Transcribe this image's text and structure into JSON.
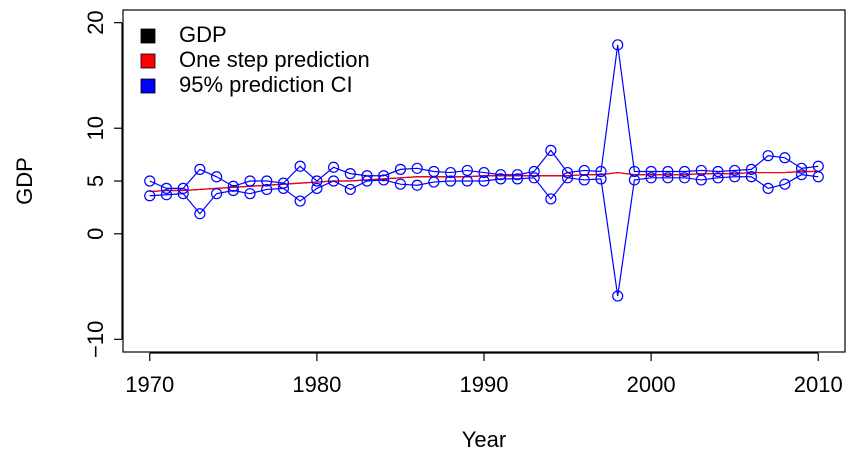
{
  "chart_data": {
    "type": "line",
    "x": [
      1970,
      1971,
      1972,
      1973,
      1974,
      1975,
      1976,
      1977,
      1978,
      1979,
      1980,
      1981,
      1982,
      1983,
      1984,
      1985,
      1986,
      1987,
      1988,
      1989,
      1990,
      1991,
      1992,
      1993,
      1994,
      1995,
      1996,
      1997,
      1998,
      1999,
      2000,
      2001,
      2002,
      2003,
      2004,
      2005,
      2006,
      2007,
      2008,
      2009,
      2010
    ],
    "xlabel": "Year",
    "ylabel": "GDP",
    "xlim": [
      1968.4,
      2011.6
    ],
    "xticks": [
      1970,
      1980,
      1990,
      2000,
      2010
    ],
    "ylim": [
      -11.2,
      21.2
    ],
    "yticks": [
      {
        "value": -10,
        "label": "−10"
      },
      0,
      5,
      10,
      20
    ],
    "legend": "top-left",
    "series": [
      {
        "name": "GDP",
        "color": "#000000",
        "values": [
          4.0,
          4.1,
          4.1,
          4.2,
          4.3,
          4.4,
          4.5,
          4.6,
          4.7,
          4.8,
          4.9,
          5.0,
          5.0,
          5.1,
          5.2,
          5.3,
          5.4,
          5.4,
          5.4,
          5.4,
          5.5,
          5.5,
          5.5,
          5.5,
          5.5,
          5.5,
          5.6,
          5.6,
          5.8,
          5.6,
          5.6,
          5.6,
          5.6,
          5.7,
          5.7,
          5.7,
          5.8,
          5.8,
          5.8,
          5.9,
          5.9
        ]
      },
      {
        "name": "One step prediction",
        "color": "#ff0000",
        "values": [
          4.0,
          4.1,
          4.1,
          4.2,
          4.3,
          4.4,
          4.5,
          4.6,
          4.7,
          4.8,
          4.9,
          5.0,
          5.0,
          5.1,
          5.2,
          5.3,
          5.4,
          5.4,
          5.4,
          5.4,
          5.5,
          5.5,
          5.5,
          5.5,
          5.5,
          5.5,
          5.6,
          5.6,
          5.8,
          5.6,
          5.6,
          5.6,
          5.6,
          5.7,
          5.7,
          5.7,
          5.8,
          5.8,
          5.8,
          5.9,
          5.9
        ]
      },
      {
        "name": "95% prediction CI",
        "color": "#0000ff",
        "upper": [
          5.0,
          4.3,
          4.3,
          6.1,
          5.4,
          4.5,
          5.0,
          5.0,
          4.8,
          6.4,
          5.0,
          6.3,
          5.7,
          5.5,
          5.5,
          6.1,
          6.2,
          5.9,
          5.8,
          6.0,
          5.8,
          5.6,
          5.6,
          5.9,
          7.9,
          5.8,
          6.0,
          5.9,
          17.9,
          5.9,
          5.9,
          5.9,
          5.9,
          6.0,
          5.9,
          6.0,
          6.1,
          7.4,
          7.2,
          6.2,
          6.4
        ],
        "lower": [
          3.6,
          3.7,
          3.8,
          1.9,
          3.8,
          4.1,
          3.8,
          4.2,
          4.3,
          3.1,
          4.3,
          5.0,
          4.2,
          5.0,
          5.1,
          4.7,
          4.6,
          4.9,
          5.0,
          5.0,
          5.0,
          5.2,
          5.2,
          5.3,
          3.3,
          5.3,
          5.1,
          5.2,
          -5.9,
          5.1,
          5.3,
          5.3,
          5.3,
          5.1,
          5.3,
          5.4,
          5.4,
          4.3,
          4.7,
          5.6,
          5.4
        ]
      }
    ]
  }
}
